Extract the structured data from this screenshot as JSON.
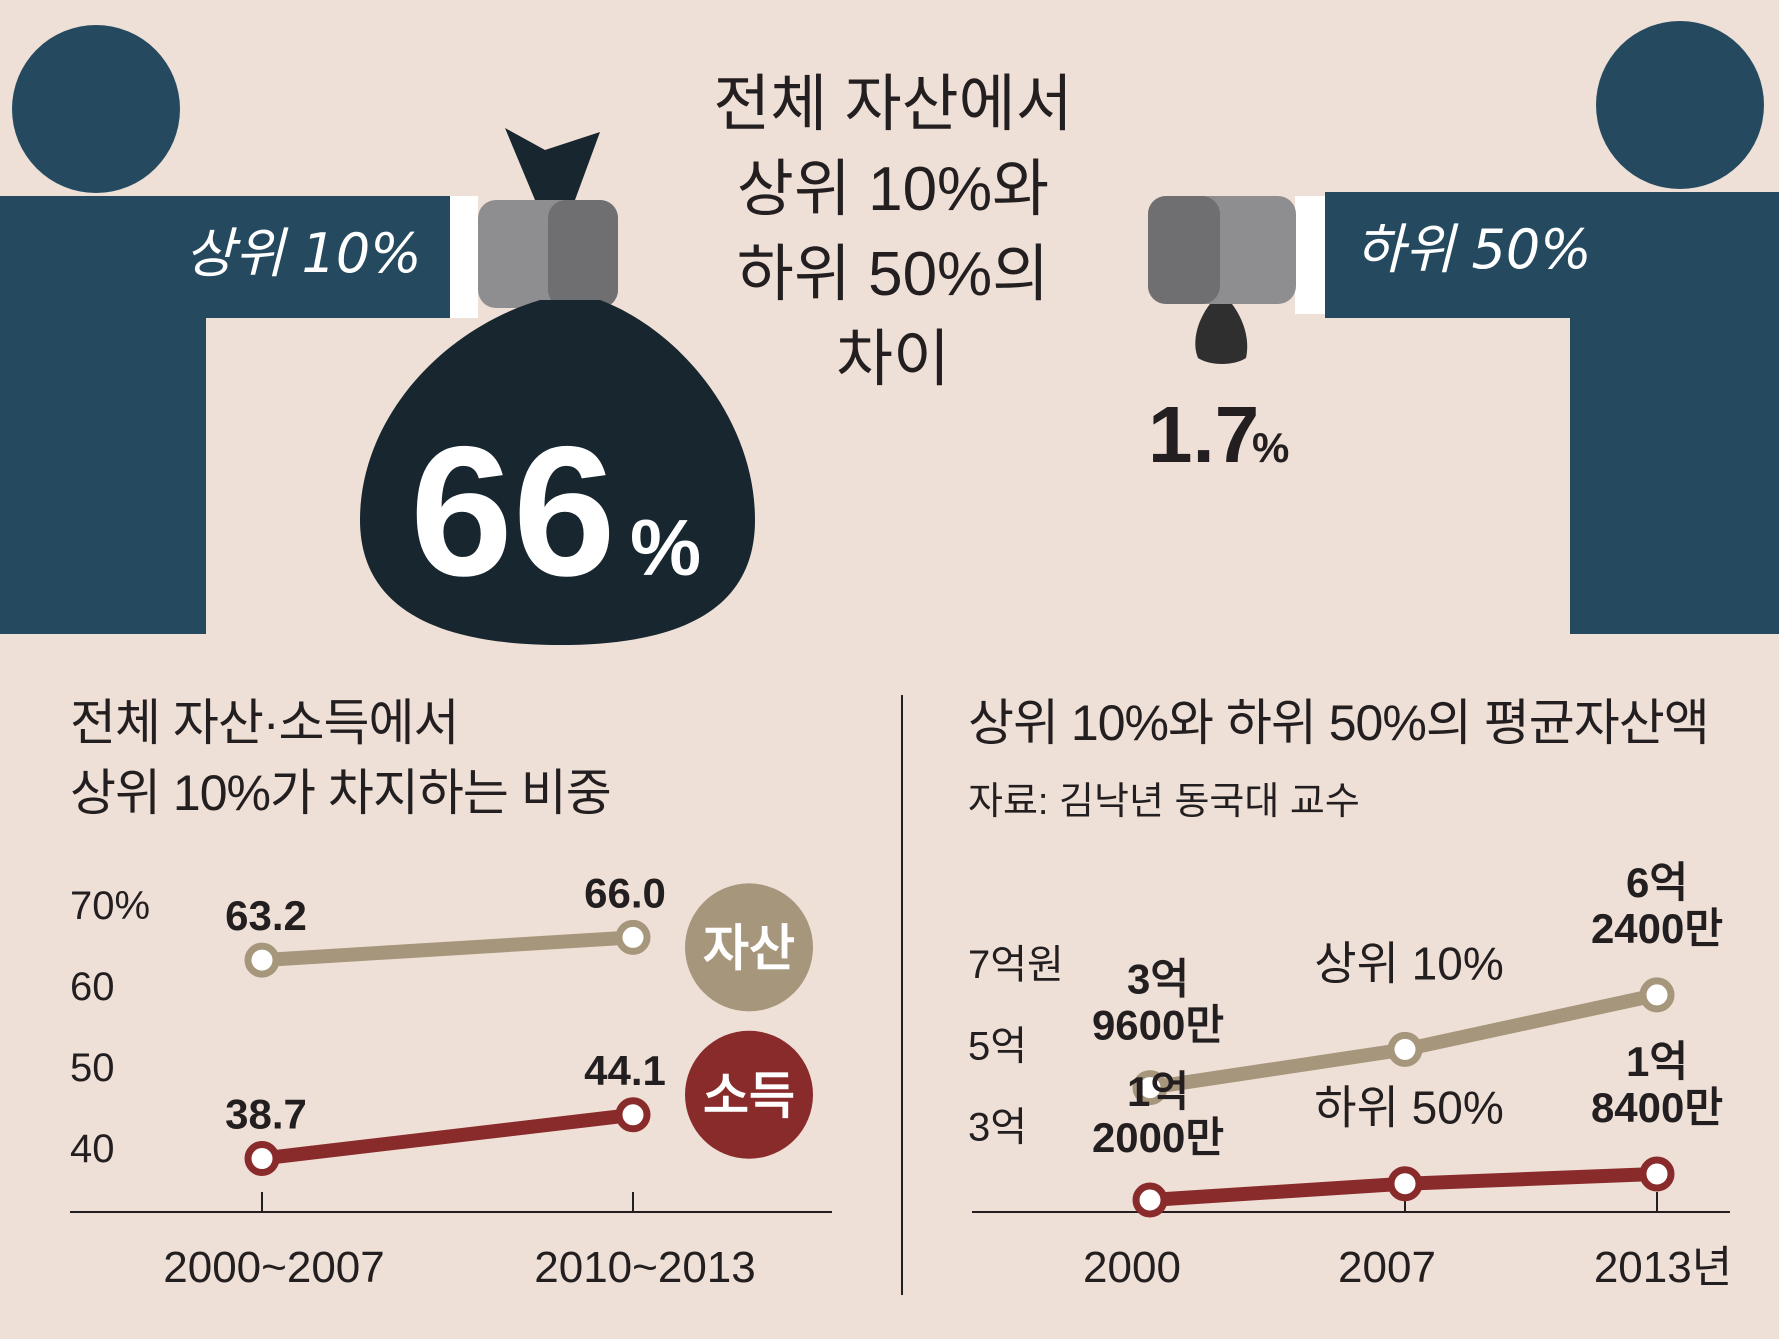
{
  "colors": {
    "background": "#efe0d7",
    "navy": "#254a60",
    "bag": "#18262f",
    "glove": "#8e8e90",
    "asset_tan": "#a6967b",
    "income_red": "#8a2b2b",
    "text_dark": "#231f20"
  },
  "hero": {
    "title_lines": [
      "전체 자산에서",
      "상위 10%와",
      "하위 50%의",
      "차이"
    ],
    "left_person_label": "상위 10%",
    "right_person_label": "하위 50%",
    "big_value": "66",
    "big_unit": "%",
    "small_value": "1.7",
    "small_unit": "%"
  },
  "chart_data": [
    {
      "type": "line",
      "title_lines": [
        "전체 자산·소득에서",
        "상위 10%가 차지하는 비중"
      ],
      "categories": [
        "2000~2007",
        "2010~2013"
      ],
      "y_tick_labels": [
        "70%",
        "60",
        "50",
        "40"
      ],
      "y_ticks": [
        70,
        60,
        50,
        40
      ],
      "ylim": [
        33,
        75
      ],
      "series": [
        {
          "name": "자산",
          "values": [
            63.2,
            66.0
          ],
          "labels": [
            "63.2",
            "66.0"
          ],
          "color": "#a6967b"
        },
        {
          "name": "소득",
          "values": [
            38.7,
            44.1
          ],
          "labels": [
            "38.7",
            "44.1"
          ],
          "color": "#8a2b2b"
        }
      ]
    },
    {
      "type": "line",
      "title": "상위 10%와 하위 50%의 평균자산액",
      "source": "자료: 김낙년 동국대 교수",
      "categories": [
        "2000",
        "2007",
        "2013년"
      ],
      "y_tick_labels": [
        "7억원",
        "5억",
        "3억"
      ],
      "y_ticks": [
        70000,
        50000,
        30000
      ],
      "ylim": [
        8000,
        80000
      ],
      "series": [
        {
          "name": "상위 10%",
          "values": [
            39600,
            49000,
            62400
          ],
          "labels": [
            [
              "3억",
              "9600만"
            ],
            null,
            [
              "6억",
              "2400만"
            ]
          ],
          "color": "#a6967b"
        },
        {
          "name": "하위 50%",
          "values": [
            12000,
            16000,
            18400
          ],
          "labels": [
            [
              "1억",
              "2000만"
            ],
            null,
            [
              "1억",
              "8400만"
            ]
          ],
          "color": "#8a2b2b"
        }
      ]
    }
  ]
}
